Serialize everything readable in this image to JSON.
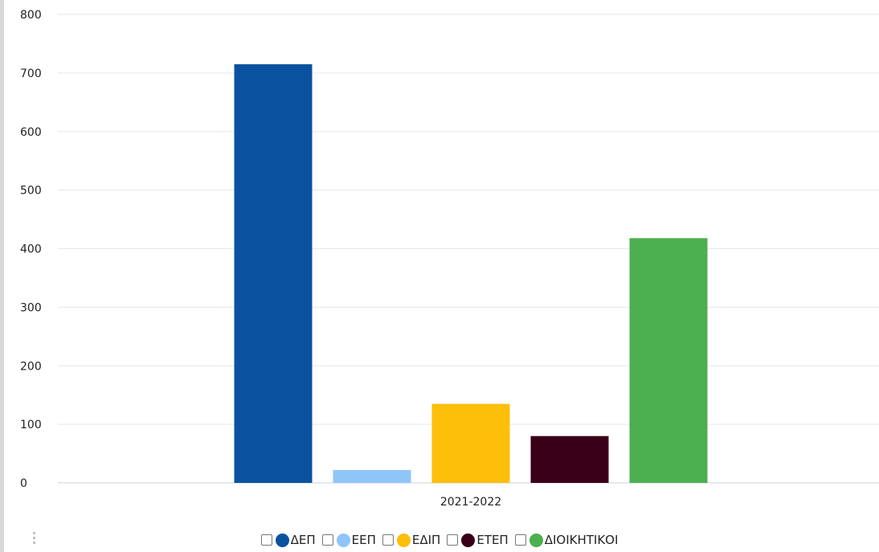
{
  "chart_data": {
    "type": "bar",
    "categories": [
      "2021-2022"
    ],
    "series": [
      {
        "name": "ΔΕΠ",
        "values": [
          715
        ],
        "color": "#0a52a0"
      },
      {
        "name": "ΕΕΠ",
        "values": [
          22
        ],
        "color": "#90c5fa"
      },
      {
        "name": "ΕΔΙΠ",
        "values": [
          135
        ],
        "color": "#fdbf0a"
      },
      {
        "name": "ΕΤΕΠ",
        "values": [
          80
        ],
        "color": "#3a0018"
      },
      {
        "name": "ΔΙΟΙΚΗΤΙΚΟΙ",
        "values": [
          418
        ],
        "color": "#4caf50"
      }
    ],
    "y_ticks": [
      "0",
      "100",
      "200",
      "300",
      "400",
      "500",
      "600",
      "700",
      "800"
    ],
    "ylim": [
      0,
      800
    ],
    "title": "",
    "xlabel": "",
    "ylabel": "",
    "grid": true,
    "legend_position": "bottom"
  },
  "colors": {
    "grid": "#e6e6e6",
    "axis": "#c8d0dc",
    "text": "#222222"
  },
  "icons": {
    "more": "vertical-dots-icon"
  }
}
